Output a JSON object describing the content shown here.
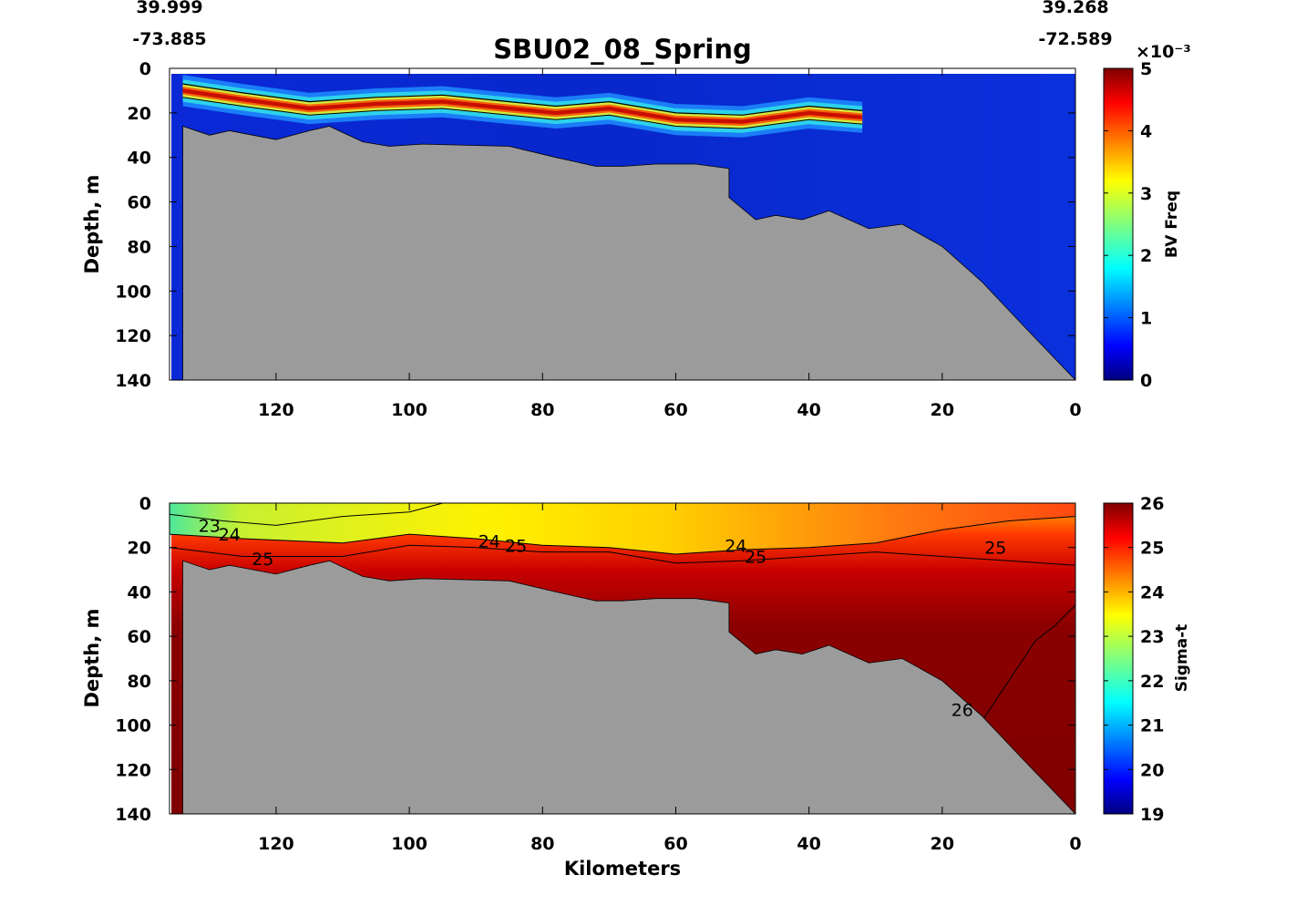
{
  "figure": {
    "title": "SBU02_08_Spring",
    "corner_coords": {
      "left_lat": "39.999",
      "left_lon": "-73.885",
      "right_lat": "39.268",
      "right_lon": "-72.589"
    },
    "xlabel": "Kilometers",
    "colors": {
      "bathymetry": "#9b9b9b",
      "contour": "#000000"
    }
  },
  "chart_data": [
    {
      "type": "heatmap",
      "name": "BV frequency section",
      "xlabel": "",
      "ylabel": "Depth, m",
      "xlim": [
        136,
        0
      ],
      "ylim": [
        0,
        140
      ],
      "x_ticks": [
        "120",
        "100",
        "80",
        "60",
        "40",
        "20",
        "0"
      ],
      "y_ticks": [
        "0",
        "20",
        "40",
        "60",
        "80",
        "100",
        "120",
        "140"
      ],
      "colorbar": {
        "label": "BV Freq",
        "exponent": "×10⁻³",
        "range": [
          0,
          5
        ],
        "ticks": [
          "0",
          "1",
          "2",
          "3",
          "4",
          "5"
        ],
        "colormap": "jet"
      },
      "bottom_depth_profile": {
        "km": [
          134,
          130,
          127,
          120,
          115,
          112,
          107,
          103,
          98,
          85,
          78,
          72,
          68,
          63,
          57,
          52,
          52,
          48,
          45,
          41,
          37,
          31,
          26,
          20,
          14,
          8,
          0
        ],
        "depth": [
          26,
          30,
          28,
          32,
          28,
          26,
          33,
          35,
          34,
          35,
          40,
          44,
          44,
          43,
          43,
          45,
          58,
          68,
          66,
          68,
          64,
          72,
          70,
          80,
          96,
          115,
          140
        ]
      },
      "high_stratification_band": {
        "km": [
          134,
          125,
          115,
          105,
          95,
          85,
          78,
          70,
          60,
          50,
          40,
          32
        ],
        "depth": [
          10,
          14,
          18,
          16,
          15,
          18,
          20,
          18,
          23,
          24,
          20,
          22
        ],
        "peak_value": 5
      },
      "contour_labels": []
    },
    {
      "type": "heatmap",
      "name": "Sigma-t section",
      "xlabel": "Kilometers",
      "ylabel": "Depth, m",
      "xlim": [
        136,
        0
      ],
      "ylim": [
        0,
        140
      ],
      "x_ticks": [
        "120",
        "100",
        "80",
        "60",
        "40",
        "20",
        "0"
      ],
      "y_ticks": [
        "0",
        "20",
        "40",
        "60",
        "80",
        "100",
        "120",
        "140"
      ],
      "colorbar": {
        "label": "Sigma-t",
        "range": [
          19,
          26
        ],
        "ticks": [
          "19",
          "20",
          "21",
          "22",
          "23",
          "24",
          "25",
          "26"
        ],
        "colormap": "jet"
      },
      "bottom_depth_profile": {
        "km": [
          134,
          130,
          127,
          120,
          115,
          112,
          107,
          103,
          98,
          85,
          78,
          72,
          68,
          63,
          57,
          52,
          52,
          48,
          45,
          41,
          37,
          31,
          26,
          20,
          14,
          8,
          0
        ],
        "depth": [
          26,
          30,
          28,
          32,
          28,
          26,
          33,
          35,
          34,
          35,
          40,
          44,
          44,
          43,
          43,
          45,
          58,
          68,
          66,
          68,
          64,
          72,
          70,
          80,
          96,
          115,
          140
        ]
      },
      "isopycnals": [
        {
          "sigma": 23,
          "km": [
            136,
            128,
            120,
            110,
            100,
            95
          ],
          "depth": [
            5,
            8,
            10,
            6,
            4,
            0
          ]
        },
        {
          "sigma": 24,
          "km": [
            136,
            125,
            110,
            100,
            90,
            80,
            70,
            60,
            50,
            40,
            30,
            20,
            10,
            0
          ],
          "depth": [
            14,
            16,
            18,
            14,
            16,
            19,
            20,
            23,
            21,
            20,
            18,
            12,
            8,
            6
          ]
        },
        {
          "sigma": 25,
          "km": [
            136,
            125,
            110,
            100,
            90,
            80,
            70,
            60,
            50,
            40,
            30,
            20,
            10,
            0
          ],
          "depth": [
            20,
            24,
            24,
            19,
            20,
            22,
            22,
            27,
            26,
            24,
            22,
            24,
            26,
            28
          ]
        },
        {
          "sigma": 26,
          "km": [
            20,
            14,
            10,
            6,
            3,
            0
          ],
          "depth": [
            100,
            98,
            80,
            62,
            55,
            46
          ]
        }
      ],
      "contour_labels": [
        {
          "text": "23",
          "km": 130,
          "depth": 10
        },
        {
          "text": "24",
          "km": 127,
          "depth": 14
        },
        {
          "text": "25",
          "km": 122,
          "depth": 25
        },
        {
          "text": "24",
          "km": 88,
          "depth": 17
        },
        {
          "text": "25",
          "km": 84,
          "depth": 19
        },
        {
          "text": "24",
          "km": 51,
          "depth": 19
        },
        {
          "text": "25",
          "km": 48,
          "depth": 24
        },
        {
          "text": "25",
          "km": 12,
          "depth": 20
        },
        {
          "text": "26",
          "km": 17,
          "depth": 93
        }
      ]
    }
  ]
}
